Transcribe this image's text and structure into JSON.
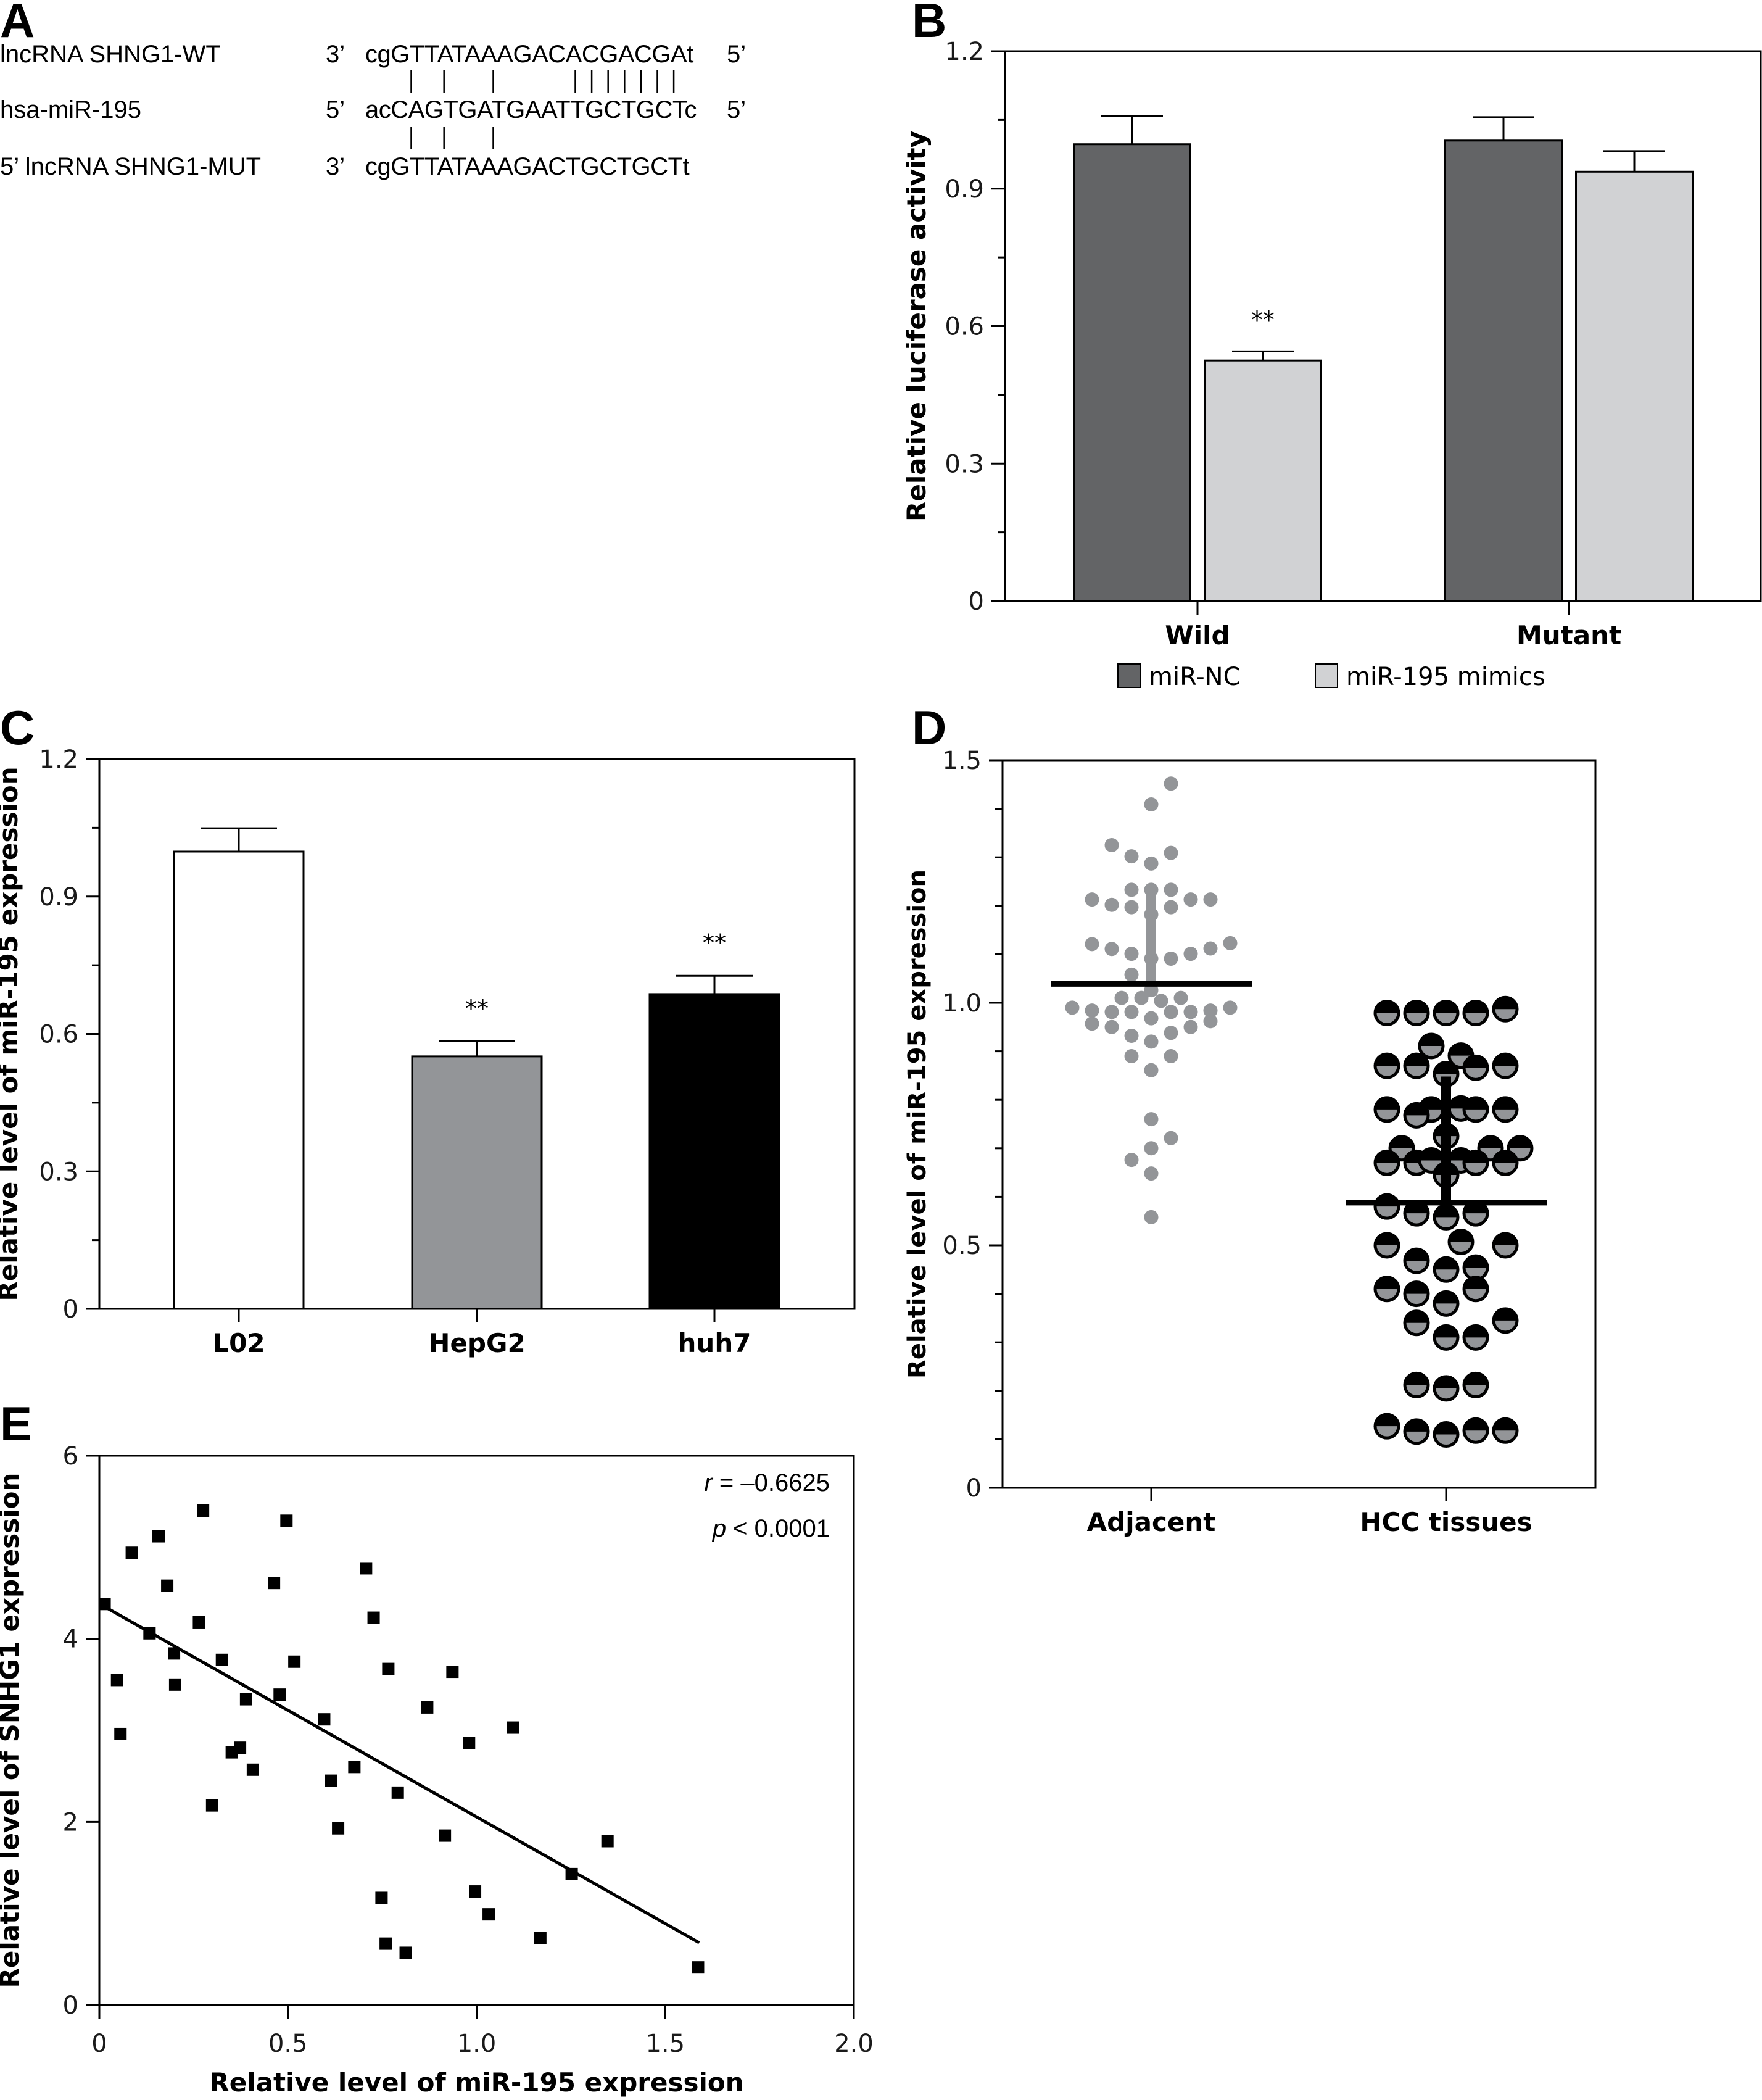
{
  "panels": {
    "A": {
      "letter": "A",
      "rows": [
        {
          "name": "lncRNA SHNG1-WT",
          "end_left": "3’",
          "sequence": "cgGTTATAAAGACACGACGAt",
          "end_right": "5’"
        },
        {
          "name": "hsa-miR-195",
          "end_left": "5’",
          "sequence": "acCAGTGATGAATTGCTGCTc",
          "end_right": "5’"
        },
        {
          "name": "5’ lncRNA SHNG1-MUT",
          "end_left": "3’",
          "sequence": "cgGTTATAAAGACTGCTGCTt",
          "end_right": ""
        }
      ],
      "pairing_top": "  | |  |    |||||||",
      "pairing_bottom": "  | |  |"
    },
    "B": {
      "letter": "B"
    },
    "C": {
      "letter": "C"
    },
    "D": {
      "letter": "D"
    },
    "E": {
      "letter": "E"
    }
  },
  "chart_data": [
    {
      "id": "B",
      "type": "bar",
      "title": "",
      "xlabel": "",
      "ylabel": "Relative luciferase activity",
      "ylim": [
        0,
        1.2
      ],
      "yticks": [
        "0",
        "0.3",
        "0.6",
        "0.9",
        "1.2"
      ],
      "ytick_values": [
        0,
        0.3,
        0.6,
        0.9,
        1.2
      ],
      "minor_ticks": true,
      "categories": [
        "Wild",
        "Mutant"
      ],
      "series": [
        {
          "name": "miR-NC",
          "color": "#636466",
          "values": [
            0.997,
            1.005
          ],
          "error_upper": [
            1.059,
            1.056
          ],
          "significance": [
            "",
            ""
          ]
        },
        {
          "name": "miR-195 mimics",
          "color": "#d1d2d4",
          "values": [
            0.525,
            0.937
          ],
          "error_upper": [
            0.545,
            0.982
          ],
          "significance": [
            "**",
            ""
          ]
        }
      ],
      "legend": {
        "position": "bottom",
        "entries": [
          "miR-NC",
          "miR-195 mimics"
        ]
      }
    },
    {
      "id": "C",
      "type": "bar",
      "title": "",
      "xlabel": "",
      "ylabel": "Relative level of miR-195 expression",
      "ylim": [
        0,
        1.2
      ],
      "yticks": [
        "0",
        "0.3",
        "0.6",
        "0.9",
        "1.2"
      ],
      "ytick_values": [
        0,
        0.3,
        0.6,
        0.9,
        1.2
      ],
      "minor_ticks": true,
      "categories": [
        "L02",
        "HepG2",
        "huh7"
      ],
      "values": [
        0.998,
        0.551,
        0.687
      ],
      "error_upper": [
        1.049,
        0.584,
        0.727
      ],
      "colors": [
        "#ffffff",
        "#939598",
        "#000000"
      ],
      "significance": [
        "",
        "**",
        "**"
      ]
    },
    {
      "id": "D",
      "type": "scatter",
      "subtype": "dot-plot",
      "title": "",
      "xlabel": "",
      "ylabel": "Relative level of miR-195 expression",
      "ylim": [
        0,
        1.5
      ],
      "yticks": [
        "0",
        "0.5",
        "1.0",
        "1.5"
      ],
      "ytick_values": [
        0,
        0.5,
        1.0,
        1.5
      ],
      "minor_ticks": true,
      "categories": [
        "Adjacent",
        "HCC tissues"
      ],
      "groups": [
        {
          "name": "Adjacent",
          "color": "#939598",
          "mean": 1.039,
          "sd_upper": 1.23,
          "points": [
            {
              "offset": 1,
              "y": 1.452
            },
            {
              "offset": 0,
              "y": 1.409
            },
            {
              "offset": -2,
              "y": 1.325
            },
            {
              "offset": -1,
              "y": 1.302
            },
            {
              "offset": 1,
              "y": 1.309
            },
            {
              "offset": 0,
              "y": 1.287
            },
            {
              "offset": -1,
              "y": 1.233
            },
            {
              "offset": 0,
              "y": 1.233
            },
            {
              "offset": 1,
              "y": 1.233
            },
            {
              "offset": -3,
              "y": 1.213
            },
            {
              "offset": 2,
              "y": 1.213
            },
            {
              "offset": 3,
              "y": 1.213
            },
            {
              "offset": -2,
              "y": 1.202
            },
            {
              "offset": -1,
              "y": 1.197
            },
            {
              "offset": 1,
              "y": 1.197
            },
            {
              "offset": 0,
              "y": 1.182
            },
            {
              "offset": -3,
              "y": 1.121
            },
            {
              "offset": -2,
              "y": 1.111
            },
            {
              "offset": 4,
              "y": 1.123
            },
            {
              "offset": 3,
              "y": 1.112
            },
            {
              "offset": -1,
              "y": 1.101
            },
            {
              "offset": 2,
              "y": 1.101
            },
            {
              "offset": 0,
              "y": 1.091
            },
            {
              "offset": 1,
              "y": 1.091
            },
            {
              "offset": -1,
              "y": 1.058
            },
            {
              "offset": 0,
              "y": 1.026
            },
            {
              "offset": -1.5,
              "y": 1.01
            },
            {
              "offset": -0.5,
              "y": 1.01
            },
            {
              "offset": 1.5,
              "y": 1.01
            },
            {
              "offset": 0.5,
              "y": 1.004
            },
            {
              "offset": -4,
              "y": 0.99
            },
            {
              "offset": 4,
              "y": 0.99
            },
            {
              "offset": -3,
              "y": 0.984
            },
            {
              "offset": 3,
              "y": 0.984
            },
            {
              "offset": -2,
              "y": 0.981
            },
            {
              "offset": -1,
              "y": 0.981
            },
            {
              "offset": 1,
              "y": 0.981
            },
            {
              "offset": 2,
              "y": 0.981
            },
            {
              "offset": 0,
              "y": 0.968
            },
            {
              "offset": -3,
              "y": 0.957
            },
            {
              "offset": -2,
              "y": 0.95
            },
            {
              "offset": 2,
              "y": 0.95
            },
            {
              "offset": 3,
              "y": 0.962
            },
            {
              "offset": 1,
              "y": 0.938
            },
            {
              "offset": -1,
              "y": 0.932
            },
            {
              "offset": 0,
              "y": 0.92
            },
            {
              "offset": -1,
              "y": 0.89
            },
            {
              "offset": 1,
              "y": 0.89
            },
            {
              "offset": 0,
              "y": 0.861
            },
            {
              "offset": 0,
              "y": 0.76
            },
            {
              "offset": 1,
              "y": 0.721
            },
            {
              "offset": 0,
              "y": 0.7
            },
            {
              "offset": -1,
              "y": 0.676
            },
            {
              "offset": 0,
              "y": 0.648
            },
            {
              "offset": 0,
              "y": 0.558
            }
          ]
        },
        {
          "name": "HCC tissues",
          "color": "#939598",
          "edge_color": "#000000",
          "mean": 0.588,
          "sd_upper": 0.848,
          "points": [
            {
              "offset": -2,
              "y": 0.979
            },
            {
              "offset": -1,
              "y": 0.979
            },
            {
              "offset": 0,
              "y": 0.979
            },
            {
              "offset": 1,
              "y": 0.979
            },
            {
              "offset": 2,
              "y": 0.987
            },
            {
              "offset": -0.5,
              "y": 0.911
            },
            {
              "offset": 0.5,
              "y": 0.891
            },
            {
              "offset": -2,
              "y": 0.87
            },
            {
              "offset": -1,
              "y": 0.87
            },
            {
              "offset": 1,
              "y": 0.866
            },
            {
              "offset": 2,
              "y": 0.87
            },
            {
              "offset": 0,
              "y": 0.853
            },
            {
              "offset": -2,
              "y": 0.78
            },
            {
              "offset": -0.5,
              "y": 0.78
            },
            {
              "offset": 0.5,
              "y": 0.782
            },
            {
              "offset": 1,
              "y": 0.78
            },
            {
              "offset": 2,
              "y": 0.78
            },
            {
              "offset": -1,
              "y": 0.768
            },
            {
              "offset": 0,
              "y": 0.725
            },
            {
              "offset": -1.5,
              "y": 0.7
            },
            {
              "offset": 1.5,
              "y": 0.7
            },
            {
              "offset": 2.5,
              "y": 0.7
            },
            {
              "offset": -2,
              "y": 0.67
            },
            {
              "offset": -1,
              "y": 0.67
            },
            {
              "offset": -0.5,
              "y": 0.675
            },
            {
              "offset": 0.5,
              "y": 0.675
            },
            {
              "offset": 1,
              "y": 0.67
            },
            {
              "offset": 2,
              "y": 0.67
            },
            {
              "offset": 0,
              "y": 0.645
            },
            {
              "offset": -2,
              "y": 0.58
            },
            {
              "offset": -1,
              "y": 0.566
            },
            {
              "offset": 1,
              "y": 0.566
            },
            {
              "offset": 0,
              "y": 0.558
            },
            {
              "offset": 0.5,
              "y": 0.507
            },
            {
              "offset": -2,
              "y": 0.5
            },
            {
              "offset": 2,
              "y": 0.5
            },
            {
              "offset": -1,
              "y": 0.468
            },
            {
              "offset": 1,
              "y": 0.454
            },
            {
              "offset": 0,
              "y": 0.45
            },
            {
              "offset": -2,
              "y": 0.41
            },
            {
              "offset": 1,
              "y": 0.41
            },
            {
              "offset": -1,
              "y": 0.4
            },
            {
              "offset": 0,
              "y": 0.38
            },
            {
              "offset": 2,
              "y": 0.345
            },
            {
              "offset": -1,
              "y": 0.34
            },
            {
              "offset": 0,
              "y": 0.31
            },
            {
              "offset": 1,
              "y": 0.31
            },
            {
              "offset": -1,
              "y": 0.212
            },
            {
              "offset": 1,
              "y": 0.212
            },
            {
              "offset": 0,
              "y": 0.205
            },
            {
              "offset": -2,
              "y": 0.127
            },
            {
              "offset": 1,
              "y": 0.118
            },
            {
              "offset": 2,
              "y": 0.118
            },
            {
              "offset": -1,
              "y": 0.116
            },
            {
              "offset": 0,
              "y": 0.11
            }
          ]
        }
      ]
    },
    {
      "id": "E",
      "type": "scatter",
      "title": "",
      "xlabel": "Relative level of miR-195 expression",
      "ylabel": "Relative level of SNHG1 expression",
      "xlim": [
        0,
        2.0
      ],
      "ylim": [
        0,
        6
      ],
      "xticks": [
        "0",
        "0.5",
        "1.0",
        "1.5",
        "2.0"
      ],
      "xtick_values": [
        0,
        0.5,
        1.0,
        1.5,
        2.0
      ],
      "yticks": [
        "0",
        "2",
        "4",
        "6"
      ],
      "ytick_values": [
        0,
        2,
        4,
        6
      ],
      "annotations": {
        "r_label": "r",
        "r_value": " = –0.6625",
        "p_label": "p",
        "p_value": " < 0.0001"
      },
      "regression": {
        "x_start": 0.01,
        "y_start": 4.36,
        "x_end": 1.59,
        "y_end": 0.68
      },
      "points": [
        {
          "x": 0.014,
          "y": 4.38
        },
        {
          "x": 0.086,
          "y": 4.94
        },
        {
          "x": 0.157,
          "y": 5.12
        },
        {
          "x": 0.275,
          "y": 5.4
        },
        {
          "x": 0.18,
          "y": 4.58
        },
        {
          "x": 0.133,
          "y": 4.06
        },
        {
          "x": 0.264,
          "y": 4.18
        },
        {
          "x": 0.198,
          "y": 3.84
        },
        {
          "x": 0.047,
          "y": 3.55
        },
        {
          "x": 0.201,
          "y": 3.5
        },
        {
          "x": 0.056,
          "y": 2.96
        },
        {
          "x": 0.325,
          "y": 3.77
        },
        {
          "x": 0.389,
          "y": 3.34
        },
        {
          "x": 0.351,
          "y": 2.76
        },
        {
          "x": 0.373,
          "y": 2.81
        },
        {
          "x": 0.407,
          "y": 2.57
        },
        {
          "x": 0.299,
          "y": 2.18
        },
        {
          "x": 0.496,
          "y": 5.29
        },
        {
          "x": 0.463,
          "y": 4.61
        },
        {
          "x": 0.517,
          "y": 3.75
        },
        {
          "x": 0.478,
          "y": 3.39
        },
        {
          "x": 0.596,
          "y": 3.12
        },
        {
          "x": 0.614,
          "y": 2.45
        },
        {
          "x": 0.676,
          "y": 2.6
        },
        {
          "x": 0.633,
          "y": 1.93
        },
        {
          "x": 0.707,
          "y": 4.77
        },
        {
          "x": 0.727,
          "y": 4.23
        },
        {
          "x": 0.766,
          "y": 3.67
        },
        {
          "x": 0.791,
          "y": 2.32
        },
        {
          "x": 0.748,
          "y": 1.17
        },
        {
          "x": 0.759,
          "y": 0.67
        },
        {
          "x": 0.812,
          "y": 0.57
        },
        {
          "x": 0.869,
          "y": 3.25
        },
        {
          "x": 0.936,
          "y": 3.64
        },
        {
          "x": 0.98,
          "y": 2.86
        },
        {
          "x": 0.916,
          "y": 1.85
        },
        {
          "x": 0.996,
          "y": 1.24
        },
        {
          "x": 1.032,
          "y": 0.99
        },
        {
          "x": 1.096,
          "y": 3.03
        },
        {
          "x": 1.169,
          "y": 0.73
        },
        {
          "x": 1.252,
          "y": 1.43
        },
        {
          "x": 1.347,
          "y": 1.79
        },
        {
          "x": 1.587,
          "y": 0.41
        }
      ]
    }
  ]
}
